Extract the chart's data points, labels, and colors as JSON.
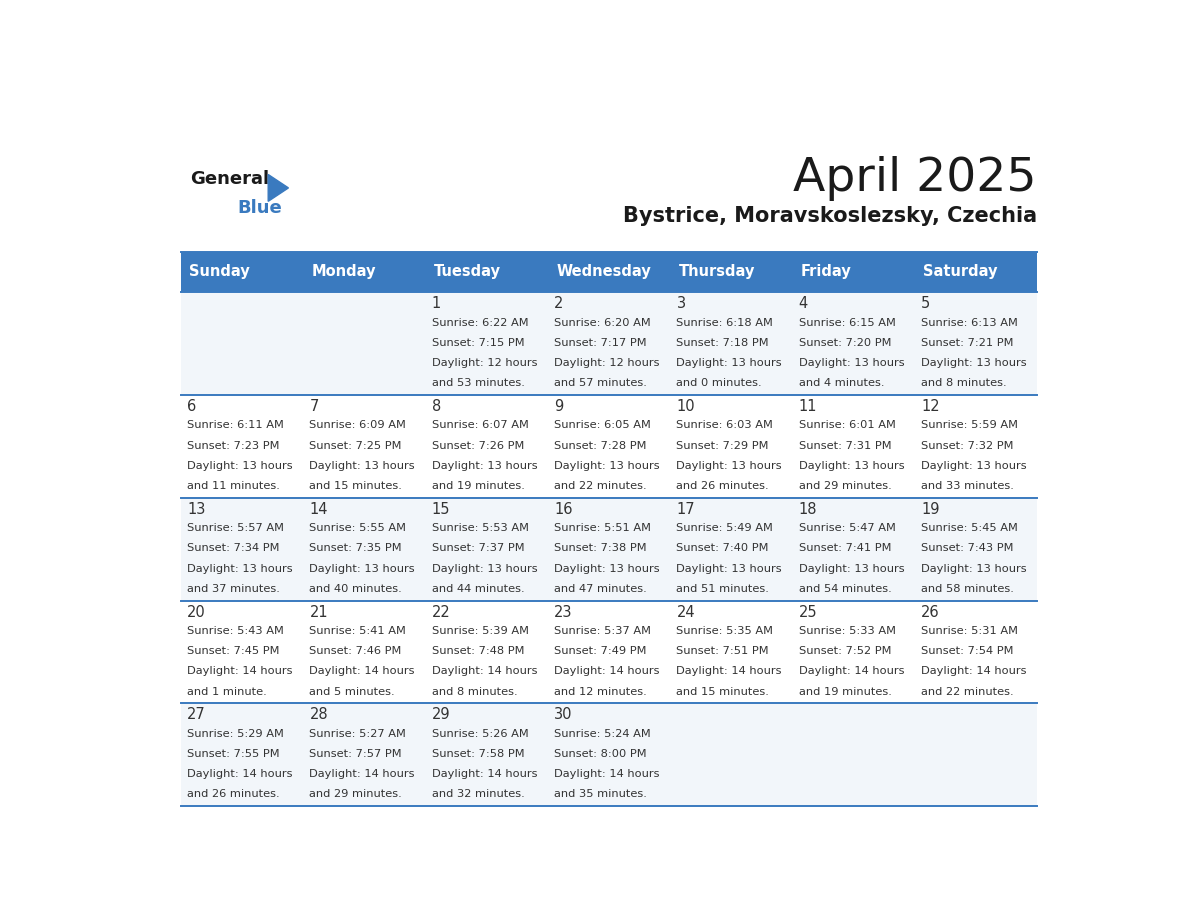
{
  "title": "April 2025",
  "subtitle": "Bystrice, Moravskoslezsky, Czechia",
  "days_of_week": [
    "Sunday",
    "Monday",
    "Tuesday",
    "Wednesday",
    "Thursday",
    "Friday",
    "Saturday"
  ],
  "header_bg": "#3a7abf",
  "header_text": "#ffffff",
  "border_color": "#3a7abf",
  "title_color": "#1a1a1a",
  "subtitle_color": "#1a1a1a",
  "text_color": "#333333",
  "row_bg_odd": "#f2f6fa",
  "row_bg_even": "#ffffff",
  "calendar_data": [
    [
      {
        "day": null,
        "sunrise": null,
        "sunset": null,
        "daylight_line1": null,
        "daylight_line2": null
      },
      {
        "day": null,
        "sunrise": null,
        "sunset": null,
        "daylight_line1": null,
        "daylight_line2": null
      },
      {
        "day": 1,
        "sunrise": "6:22 AM",
        "sunset": "7:15 PM",
        "daylight_line1": "Daylight: 12 hours",
        "daylight_line2": "and 53 minutes."
      },
      {
        "day": 2,
        "sunrise": "6:20 AM",
        "sunset": "7:17 PM",
        "daylight_line1": "Daylight: 12 hours",
        "daylight_line2": "and 57 minutes."
      },
      {
        "day": 3,
        "sunrise": "6:18 AM",
        "sunset": "7:18 PM",
        "daylight_line1": "Daylight: 13 hours",
        "daylight_line2": "and 0 minutes."
      },
      {
        "day": 4,
        "sunrise": "6:15 AM",
        "sunset": "7:20 PM",
        "daylight_line1": "Daylight: 13 hours",
        "daylight_line2": "and 4 minutes."
      },
      {
        "day": 5,
        "sunrise": "6:13 AM",
        "sunset": "7:21 PM",
        "daylight_line1": "Daylight: 13 hours",
        "daylight_line2": "and 8 minutes."
      }
    ],
    [
      {
        "day": 6,
        "sunrise": "6:11 AM",
        "sunset": "7:23 PM",
        "daylight_line1": "Daylight: 13 hours",
        "daylight_line2": "and 11 minutes."
      },
      {
        "day": 7,
        "sunrise": "6:09 AM",
        "sunset": "7:25 PM",
        "daylight_line1": "Daylight: 13 hours",
        "daylight_line2": "and 15 minutes."
      },
      {
        "day": 8,
        "sunrise": "6:07 AM",
        "sunset": "7:26 PM",
        "daylight_line1": "Daylight: 13 hours",
        "daylight_line2": "and 19 minutes."
      },
      {
        "day": 9,
        "sunrise": "6:05 AM",
        "sunset": "7:28 PM",
        "daylight_line1": "Daylight: 13 hours",
        "daylight_line2": "and 22 minutes."
      },
      {
        "day": 10,
        "sunrise": "6:03 AM",
        "sunset": "7:29 PM",
        "daylight_line1": "Daylight: 13 hours",
        "daylight_line2": "and 26 minutes."
      },
      {
        "day": 11,
        "sunrise": "6:01 AM",
        "sunset": "7:31 PM",
        "daylight_line1": "Daylight: 13 hours",
        "daylight_line2": "and 29 minutes."
      },
      {
        "day": 12,
        "sunrise": "5:59 AM",
        "sunset": "7:32 PM",
        "daylight_line1": "Daylight: 13 hours",
        "daylight_line2": "and 33 minutes."
      }
    ],
    [
      {
        "day": 13,
        "sunrise": "5:57 AM",
        "sunset": "7:34 PM",
        "daylight_line1": "Daylight: 13 hours",
        "daylight_line2": "and 37 minutes."
      },
      {
        "day": 14,
        "sunrise": "5:55 AM",
        "sunset": "7:35 PM",
        "daylight_line1": "Daylight: 13 hours",
        "daylight_line2": "and 40 minutes."
      },
      {
        "day": 15,
        "sunrise": "5:53 AM",
        "sunset": "7:37 PM",
        "daylight_line1": "Daylight: 13 hours",
        "daylight_line2": "and 44 minutes."
      },
      {
        "day": 16,
        "sunrise": "5:51 AM",
        "sunset": "7:38 PM",
        "daylight_line1": "Daylight: 13 hours",
        "daylight_line2": "and 47 minutes."
      },
      {
        "day": 17,
        "sunrise": "5:49 AM",
        "sunset": "7:40 PM",
        "daylight_line1": "Daylight: 13 hours",
        "daylight_line2": "and 51 minutes."
      },
      {
        "day": 18,
        "sunrise": "5:47 AM",
        "sunset": "7:41 PM",
        "daylight_line1": "Daylight: 13 hours",
        "daylight_line2": "and 54 minutes."
      },
      {
        "day": 19,
        "sunrise": "5:45 AM",
        "sunset": "7:43 PM",
        "daylight_line1": "Daylight: 13 hours",
        "daylight_line2": "and 58 minutes."
      }
    ],
    [
      {
        "day": 20,
        "sunrise": "5:43 AM",
        "sunset": "7:45 PM",
        "daylight_line1": "Daylight: 14 hours",
        "daylight_line2": "and 1 minute."
      },
      {
        "day": 21,
        "sunrise": "5:41 AM",
        "sunset": "7:46 PM",
        "daylight_line1": "Daylight: 14 hours",
        "daylight_line2": "and 5 minutes."
      },
      {
        "day": 22,
        "sunrise": "5:39 AM",
        "sunset": "7:48 PM",
        "daylight_line1": "Daylight: 14 hours",
        "daylight_line2": "and 8 minutes."
      },
      {
        "day": 23,
        "sunrise": "5:37 AM",
        "sunset": "7:49 PM",
        "daylight_line1": "Daylight: 14 hours",
        "daylight_line2": "and 12 minutes."
      },
      {
        "day": 24,
        "sunrise": "5:35 AM",
        "sunset": "7:51 PM",
        "daylight_line1": "Daylight: 14 hours",
        "daylight_line2": "and 15 minutes."
      },
      {
        "day": 25,
        "sunrise": "5:33 AM",
        "sunset": "7:52 PM",
        "daylight_line1": "Daylight: 14 hours",
        "daylight_line2": "and 19 minutes."
      },
      {
        "day": 26,
        "sunrise": "5:31 AM",
        "sunset": "7:54 PM",
        "daylight_line1": "Daylight: 14 hours",
        "daylight_line2": "and 22 minutes."
      }
    ],
    [
      {
        "day": 27,
        "sunrise": "5:29 AM",
        "sunset": "7:55 PM",
        "daylight_line1": "Daylight: 14 hours",
        "daylight_line2": "and 26 minutes."
      },
      {
        "day": 28,
        "sunrise": "5:27 AM",
        "sunset": "7:57 PM",
        "daylight_line1": "Daylight: 14 hours",
        "daylight_line2": "and 29 minutes."
      },
      {
        "day": 29,
        "sunrise": "5:26 AM",
        "sunset": "7:58 PM",
        "daylight_line1": "Daylight: 14 hours",
        "daylight_line2": "and 32 minutes."
      },
      {
        "day": 30,
        "sunrise": "5:24 AM",
        "sunset": "8:00 PM",
        "daylight_line1": "Daylight: 14 hours",
        "daylight_line2": "and 35 minutes."
      },
      {
        "day": null,
        "sunrise": null,
        "sunset": null,
        "daylight_line1": null,
        "daylight_line2": null
      },
      {
        "day": null,
        "sunrise": null,
        "sunset": null,
        "daylight_line1": null,
        "daylight_line2": null
      },
      {
        "day": null,
        "sunrise": null,
        "sunset": null,
        "daylight_line1": null,
        "daylight_line2": null
      }
    ]
  ]
}
